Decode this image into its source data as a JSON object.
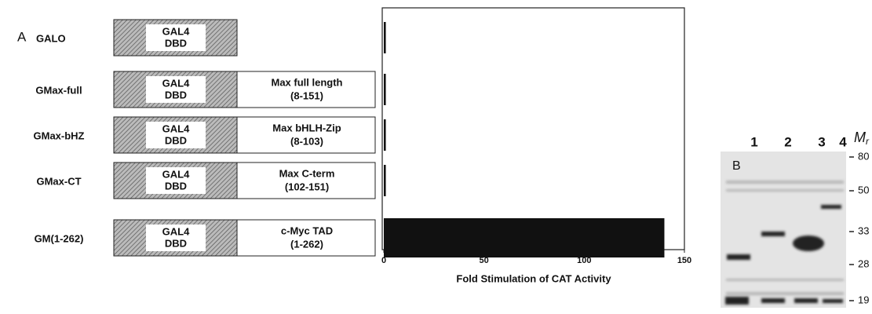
{
  "chart_data": {
    "type": "bar",
    "orientation": "horizontal",
    "panel_label": "A",
    "categories": [
      "GALO",
      "GMax-full",
      "GMax-bHZ",
      "GMax-CT",
      "GM(1-262)"
    ],
    "values": [
      1,
      1,
      1,
      1,
      140
    ],
    "color": "#111111",
    "xlim": [
      0,
      150
    ],
    "xticks": [
      0,
      50,
      100,
      150
    ],
    "xlabel": "Fold Stimulation of CAT Activity"
  },
  "constructs": [
    {
      "domain": [
        "GAL4",
        "DBD"
      ]
    },
    {
      "domain": [
        "GAL4",
        "DBD"
      ],
      "fusion": [
        "Max full length",
        "(8-151)"
      ]
    },
    {
      "domain": [
        "GAL4",
        "DBD"
      ],
      "fusion": [
        "Max bHLH-Zip",
        "(8-103)"
      ]
    },
    {
      "domain": [
        "GAL4",
        "DBD"
      ],
      "fusion": [
        "Max C-term",
        "(102-151)"
      ]
    },
    {
      "domain": [
        "GAL4",
        "DBD"
      ],
      "fusion": [
        "c-Myc TAD",
        "(1-262)"
      ]
    }
  ],
  "gel": {
    "panel_label": "B",
    "lanes": [
      "1",
      "2",
      "3",
      "4"
    ],
    "mr_label": "M",
    "mr_subscript": "r",
    "markers": [
      80,
      50,
      33,
      28,
      19
    ]
  }
}
